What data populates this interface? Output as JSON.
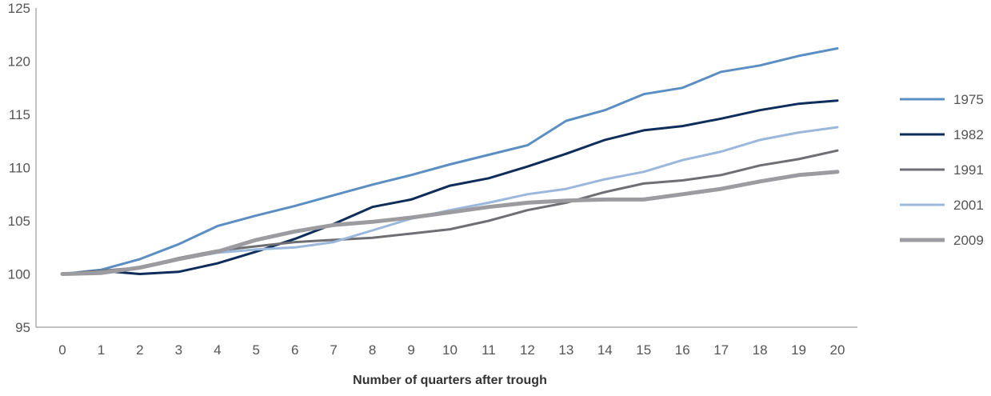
{
  "chart_data": {
    "type": "line",
    "title": "",
    "xlabel": "Number of quarters after trough",
    "ylabel": "",
    "x": [
      0,
      1,
      2,
      3,
      4,
      5,
      6,
      7,
      8,
      9,
      10,
      11,
      12,
      13,
      14,
      15,
      16,
      17,
      18,
      19,
      20
    ],
    "xticks": [
      "0",
      "1",
      "2",
      "3",
      "4",
      "5",
      "6",
      "7",
      "8",
      "9",
      "10",
      "11",
      "12",
      "13",
      "14",
      "15",
      "16",
      "17",
      "18",
      "19",
      "20"
    ],
    "ylim": [
      95,
      125
    ],
    "yticks": [
      "95",
      "100",
      "105",
      "110",
      "115",
      "120",
      "125"
    ],
    "grid": false,
    "legend": "right",
    "series": [
      {
        "name": "1975",
        "color": "#5b8ec2",
        "values": [
          100,
          100.4,
          101.4,
          102.8,
          104.5,
          105.5,
          106.4,
          107.4,
          108.4,
          109.3,
          110.3,
          111.2,
          112.1,
          114.4,
          115.4,
          116.9,
          117.5,
          119.0,
          119.6,
          120.5,
          121.2
        ]
      },
      {
        "name": "1982",
        "color": "#0f2d5a",
        "values": [
          100,
          100.3,
          100.0,
          100.2,
          101.0,
          102.1,
          103.3,
          104.7,
          106.3,
          107.0,
          108.3,
          109.0,
          110.1,
          111.3,
          112.6,
          113.5,
          113.9,
          114.6,
          115.4,
          116.0,
          116.3
        ]
      },
      {
        "name": "1991",
        "color": "#6f6f73",
        "values": [
          100,
          100.3,
          100.6,
          101.5,
          102.2,
          102.6,
          103.0,
          103.2,
          103.4,
          103.8,
          104.2,
          105.0,
          106.0,
          106.7,
          107.7,
          108.5,
          108.8,
          109.3,
          110.2,
          110.8,
          111.6
        ]
      },
      {
        "name": "2001",
        "color": "#9bb8dc",
        "values": [
          100,
          100.2,
          100.6,
          101.4,
          102.0,
          102.3,
          102.5,
          103.0,
          104.1,
          105.2,
          106.0,
          106.7,
          107.5,
          108.0,
          108.9,
          109.6,
          110.7,
          111.5,
          112.6,
          113.3,
          113.8
        ]
      },
      {
        "name": "2009",
        "color": "#9c9ca0",
        "values": [
          100,
          100.1,
          100.6,
          101.4,
          102.1,
          103.2,
          104.0,
          104.6,
          104.9,
          105.3,
          105.8,
          106.3,
          106.7,
          106.9,
          107.0,
          107.0,
          107.5,
          108.0,
          108.7,
          109.3,
          109.6
        ]
      }
    ]
  }
}
